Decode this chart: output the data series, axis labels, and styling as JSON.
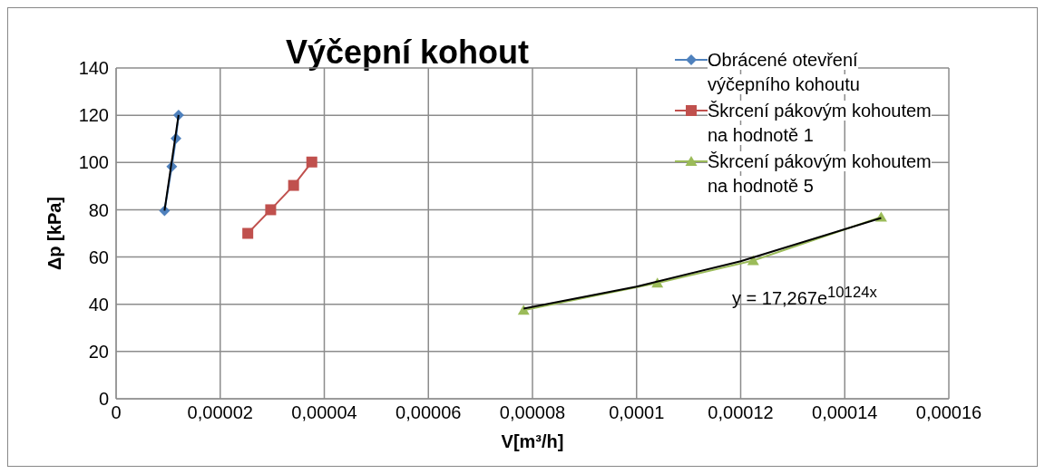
{
  "chart_data": {
    "type": "line",
    "title": "Výčepní kohout",
    "xlabel": "V[m³/h]",
    "ylabel": "Δp [kPa]",
    "xlim": [
      0,
      0.00016
    ],
    "xticks": [
      0,
      {
        "value": 2e-05,
        "label": "0,00002"
      },
      {
        "value": 4e-05,
        "label": "0,00004"
      },
      {
        "value": 6e-05,
        "label": "0,00006"
      },
      {
        "value": 8e-05,
        "label": "0,00008"
      },
      {
        "value": 0.0001,
        "label": "0,0001"
      },
      {
        "value": 0.00012,
        "label": "0,00012"
      },
      {
        "value": 0.00014,
        "label": "0,00014"
      },
      {
        "value": 0.00016,
        "label": "0,00016"
      }
    ],
    "ylim": [
      0,
      140
    ],
    "yticks": [
      0,
      20,
      40,
      60,
      80,
      100,
      120,
      140
    ],
    "grid": true,
    "legend": "top right",
    "series": [
      {
        "name": "Obrácené otevření výčepního kohoutu",
        "color": "#4f81bd",
        "marker": "diamond",
        "line_style": "solid",
        "x": [
          9.3e-06,
          1.07e-05,
          1.15e-05,
          1.2e-05
        ],
        "values": [
          79.6,
          98.3,
          110.2,
          120.1
        ]
      },
      {
        "name": "Škrcení pákovým kohoutem na hodnotě 1",
        "color": "#c0504d",
        "marker": "square",
        "line_style": "solid",
        "x": [
          2.53e-05,
          2.97e-05,
          3.41e-05,
          3.76e-05
        ],
        "values": [
          70,
          80,
          90.3,
          100.2
        ]
      },
      {
        "name": "Škrcení pákovým kohoutem na hodnotě 5",
        "color": "#9bbb59",
        "marker": "triangle",
        "line_style": "solid",
        "x": [
          7.83e-05,
          0.000104,
          0.0001224,
          0.000147
        ],
        "values": [
          37.5,
          49,
          58.5,
          76.9
        ]
      },
      {
        "type": "line",
        "color": "#000000",
        "marker": "none",
        "x": [
          9.3e-06,
          1.2e-05
        ],
        "values": [
          79.6,
          120.1
        ]
      },
      {
        "type": "line",
        "color": "#000000",
        "marker": "none",
        "x": [
          7.83e-05,
          0.0001,
          0.00012,
          0.000147
        ],
        "values": [
          38.2,
          47.5,
          58.2,
          76.5
        ]
      }
    ],
    "annotations": [
      "y = 17,267e$^{10124x}$"
    ]
  }
}
